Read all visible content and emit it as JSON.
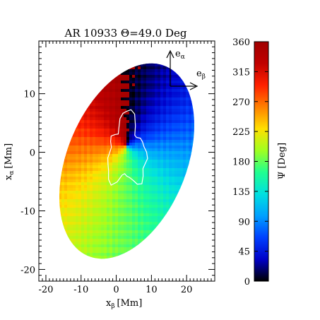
{
  "chart_data": {
    "type": "heatmap",
    "title": "AR 10933 Θ=49.0 Deg",
    "xlabel": "x",
    "xlabel_sub": "β",
    "xlabel_unit": "[Mm]",
    "ylabel": "x",
    "ylabel_sub": "α",
    "ylabel_unit": "[Mm]",
    "xlim": [
      -22,
      28
    ],
    "ylim": [
      -22,
      19
    ],
    "x_ticks": [
      -20,
      -10,
      0,
      10,
      20
    ],
    "y_ticks": [
      -20,
      -10,
      0,
      10
    ],
    "map_region": {
      "shape": "ellipse",
      "center": [
        3,
        -1.5
      ],
      "semi_axis_x": 17,
      "semi_axis_y": 17.5,
      "tilt_deg": 22
    },
    "field_center": [
      3,
      1
    ],
    "contour": "white",
    "basis_vectors": {
      "e_alpha": "e",
      "e_alpha_sub": "α",
      "e_beta": "e",
      "e_beta_sub": "β"
    },
    "colorbar": {
      "label": "Ψ [Deg]",
      "range": [
        0,
        360
      ],
      "ticks": [
        0,
        45,
        90,
        135,
        180,
        225,
        270,
        315,
        360
      ],
      "colormap": [
        "#000000",
        "#0000c8",
        "#0040ff",
        "#00a0ff",
        "#00e0e0",
        "#20ff90",
        "#a0ff20",
        "#ffe000",
        "#ff8000",
        "#ff2000",
        "#c00000",
        "#a00000"
      ]
    }
  }
}
